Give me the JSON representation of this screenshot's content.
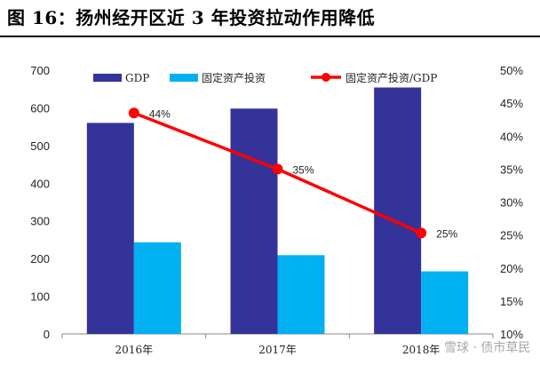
{
  "figure_title": "图 16：扬州经开区近 3 年投资拉动作用降低",
  "watermark": "雪球 · 债市草民",
  "colors": {
    "gdp": "#333399",
    "investment": "#00B0F0",
    "ratio": "#FF0000"
  },
  "chart_data": {
    "type": "bar",
    "categories": [
      "2016年",
      "2017年",
      "2018年"
    ],
    "series": [
      {
        "name": "GDP",
        "type": "bar",
        "axis": "left",
        "values": [
          560,
          598,
          654
        ]
      },
      {
        "name": "固定资产投资",
        "type": "bar",
        "axis": "left",
        "values": [
          243,
          209,
          166
        ]
      },
      {
        "name": "固定资产投资/GDP",
        "type": "line",
        "axis": "right",
        "values": [
          0.435,
          0.35,
          0.253
        ],
        "labels": [
          "44%",
          "35%",
          "25%"
        ]
      }
    ],
    "ylim": [
      0,
      700
    ],
    "y_ticks": [
      0,
      100,
      200,
      300,
      400,
      500,
      600,
      700
    ],
    "y2lim": [
      0.1,
      0.5
    ],
    "y2_ticks": [
      "10%",
      "15%",
      "20%",
      "25%",
      "30%",
      "35%",
      "40%",
      "45%",
      "50%"
    ],
    "legend_position": "top",
    "grid": false
  }
}
